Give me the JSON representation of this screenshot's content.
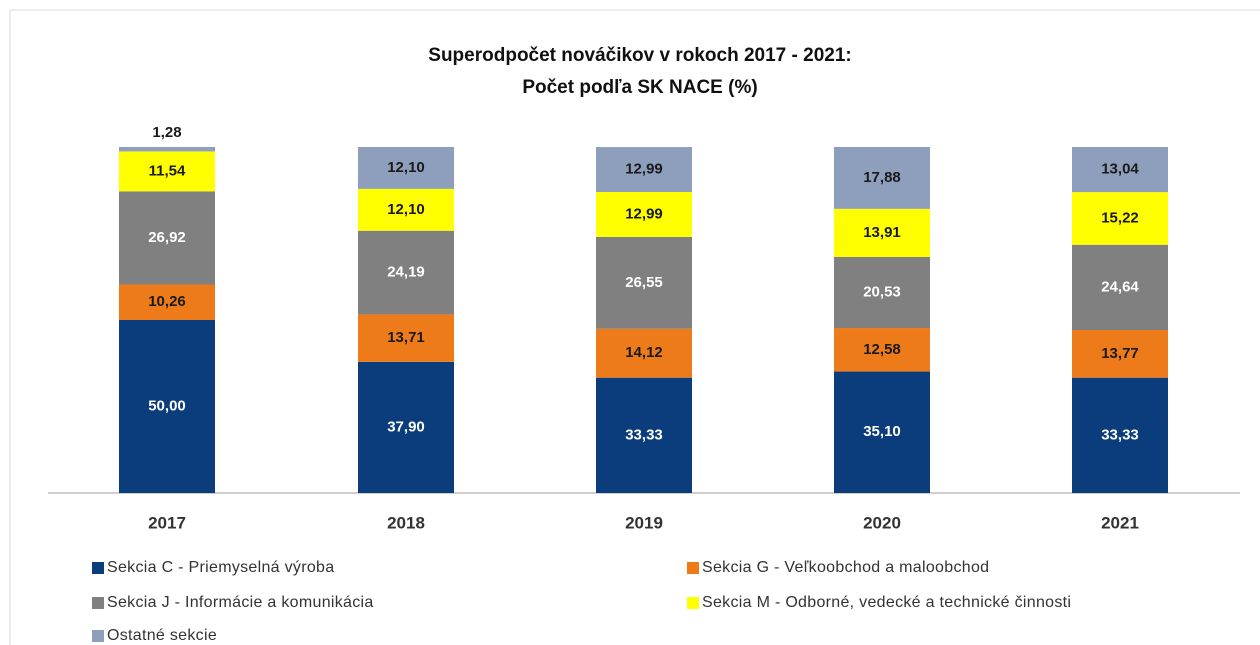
{
  "chart_data": {
    "type": "stacked_bar",
    "title": [
      "Superodpočet nováčikov v rokoch 2017 - 2021:",
      "Počet podľa SK NACE (%)"
    ],
    "categories": [
      "2017",
      "2018",
      "2019",
      "2020",
      "2021"
    ],
    "series": [
      {
        "name": "Sekcia C - Priemyselná výroba",
        "color": "#0b3c7c",
        "values": [
          50.0,
          37.9,
          33.33,
          35.1,
          33.33
        ],
        "value_labels": [
          "50,00",
          "37,90",
          "33,33",
          "35,10",
          "33,33"
        ]
      },
      {
        "name": "Sekcia G - Veľkoobchod a maloobchod",
        "color": "#ee7b1a",
        "values": [
          10.26,
          13.71,
          14.12,
          12.58,
          13.77
        ],
        "value_labels": [
          "10,26",
          "13,71",
          "14,12",
          "12,58",
          "13,77"
        ]
      },
      {
        "name": "Sekcia J - Informácie a komunikácia",
        "color": "#808080",
        "values": [
          26.92,
          24.19,
          26.55,
          20.53,
          24.64
        ],
        "value_labels": [
          "26,92",
          "24,19",
          "26,55",
          "20,53",
          "24,64"
        ]
      },
      {
        "name": "Sekcia M - Odborné, vedecké a technické činnosti",
        "color": "#ffff00",
        "values": [
          11.54,
          12.1,
          12.99,
          13.91,
          15.22
        ],
        "value_labels": [
          "11,54",
          "12,10",
          "12,99",
          "13,91",
          "15,22"
        ]
      },
      {
        "name": "Ostatné sekcie",
        "color": "#8d9fbc",
        "values": [
          1.28,
          12.1,
          12.99,
          17.88,
          13.04
        ],
        "value_labels": [
          "1,28",
          "12,10",
          "12,99",
          "17,88",
          "13,04"
        ]
      }
    ]
  }
}
